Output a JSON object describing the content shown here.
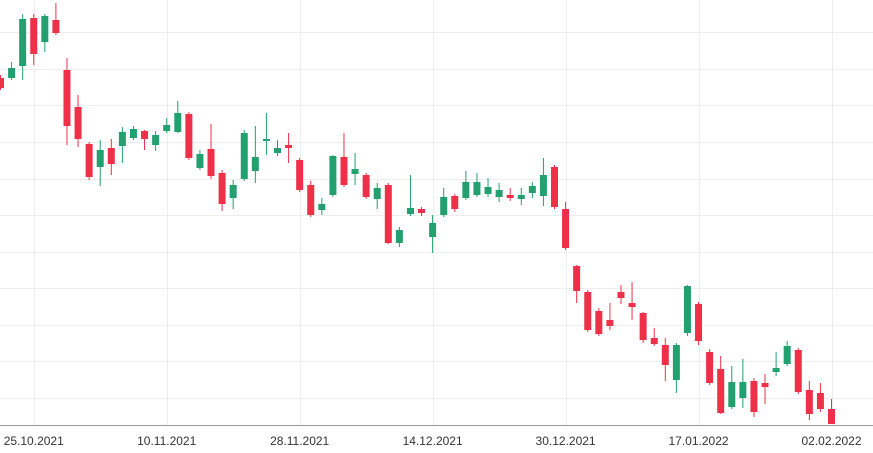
{
  "chart_data": {
    "type": "candlestick",
    "categories": [
      null,
      null,
      null,
      "25.10.2021",
      null,
      null,
      null,
      null,
      null,
      null,
      null,
      null,
      null,
      null,
      null,
      "10.11.2021",
      null,
      null,
      null,
      null,
      null,
      null,
      null,
      null,
      null,
      null,
      null,
      "28.11.2021",
      null,
      null,
      null,
      null,
      null,
      null,
      null,
      null,
      null,
      null,
      null,
      "14.12.2021",
      null,
      null,
      null,
      null,
      null,
      null,
      null,
      null,
      null,
      null,
      null,
      "30.12.2021",
      null,
      null,
      null,
      null,
      null,
      null,
      null,
      null,
      null,
      null,
      null,
      "17.01.2022",
      null,
      null,
      null,
      null,
      null,
      null,
      null,
      null,
      null,
      null,
      null,
      "02.02.2022"
    ],
    "open": [
      347,
      347,
      359,
      407,
      383,
      405,
      355,
      318,
      281,
      258,
      277,
      279,
      287,
      294,
      280,
      294,
      293,
      311,
      257,
      276,
      252,
      227,
      246,
      254,
      284,
      272,
      280,
      265,
      240,
      215,
      230,
      268,
      251,
      250,
      226,
      240,
      182,
      211,
      216,
      188,
      210,
      229,
      227,
      230,
      231,
      228,
      230,
      226,
      232,
      229,
      258,
      216,
      159,
      133,
      114,
      105,
      133,
      122,
      112,
      87,
      80,
      45,
      92,
      121,
      73,
      56,
      18,
      27,
      44,
      42,
      53,
      61,
      75,
      35,
      32,
      16
    ],
    "high": [
      350,
      363,
      411,
      411,
      411,
      422,
      367,
      330,
      283,
      285,
      286,
      298,
      299,
      295,
      294,
      307,
      324,
      313,
      275,
      301,
      255,
      245,
      295,
      299,
      312,
      285,
      292,
      267,
      244,
      227,
      270,
      292,
      272,
      252,
      242,
      242,
      198,
      250,
      218,
      210,
      237,
      231,
      254,
      252,
      247,
      242,
      237,
      237,
      243,
      267,
      260,
      223,
      160,
      135,
      117,
      122,
      140,
      143,
      113,
      97,
      87,
      82,
      140,
      123,
      76,
      69,
      59,
      66,
      47,
      51,
      73,
      84,
      77,
      44,
      42,
      26
    ],
    "low": [
      335,
      345,
      345,
      360,
      373,
      390,
      280,
      278,
      245,
      239,
      250,
      262,
      285,
      275,
      274,
      292,
      292,
      265,
      255,
      246,
      214,
      216,
      244,
      242,
      270,
      269,
      262,
      233,
      208,
      210,
      228,
      238,
      240,
      226,
      216,
      181,
      178,
      209,
      209,
      172,
      208,
      213,
      225,
      228,
      228,
      223,
      224,
      220,
      227,
      219,
      216,
      175,
      122,
      93,
      89,
      95,
      121,
      105,
      82,
      79,
      44,
      32,
      89,
      80,
      40,
      11,
      16,
      17,
      8,
      21,
      49,
      59,
      31,
      5,
      13,
      1
    ],
    "close": [
      337,
      357,
      406,
      371,
      409,
      392,
      299,
      286,
      248,
      275,
      261,
      293,
      296,
      286,
      290,
      300,
      312,
      267,
      271,
      249,
      221,
      240,
      292,
      268,
      286,
      277,
      277,
      235,
      210,
      221,
      269,
      240,
      256,
      228,
      237,
      182,
      195,
      217,
      212,
      202,
      228,
      216,
      243,
      243,
      238,
      235,
      227,
      230,
      239,
      250,
      218,
      177,
      134,
      95,
      91,
      99,
      127,
      118,
      85,
      81,
      60,
      80,
      139,
      84,
      42,
      12,
      43,
      43,
      13,
      38,
      57,
      79,
      33,
      11,
      16,
      1
    ],
    "up_color": "#22a06f",
    "down_color": "#ee3148",
    "ylim": [
      0,
      425
    ],
    "yticks": [
      27,
      64,
      100,
      137,
      173,
      210,
      246,
      283,
      320,
      356,
      393
    ],
    "grid": true
  }
}
